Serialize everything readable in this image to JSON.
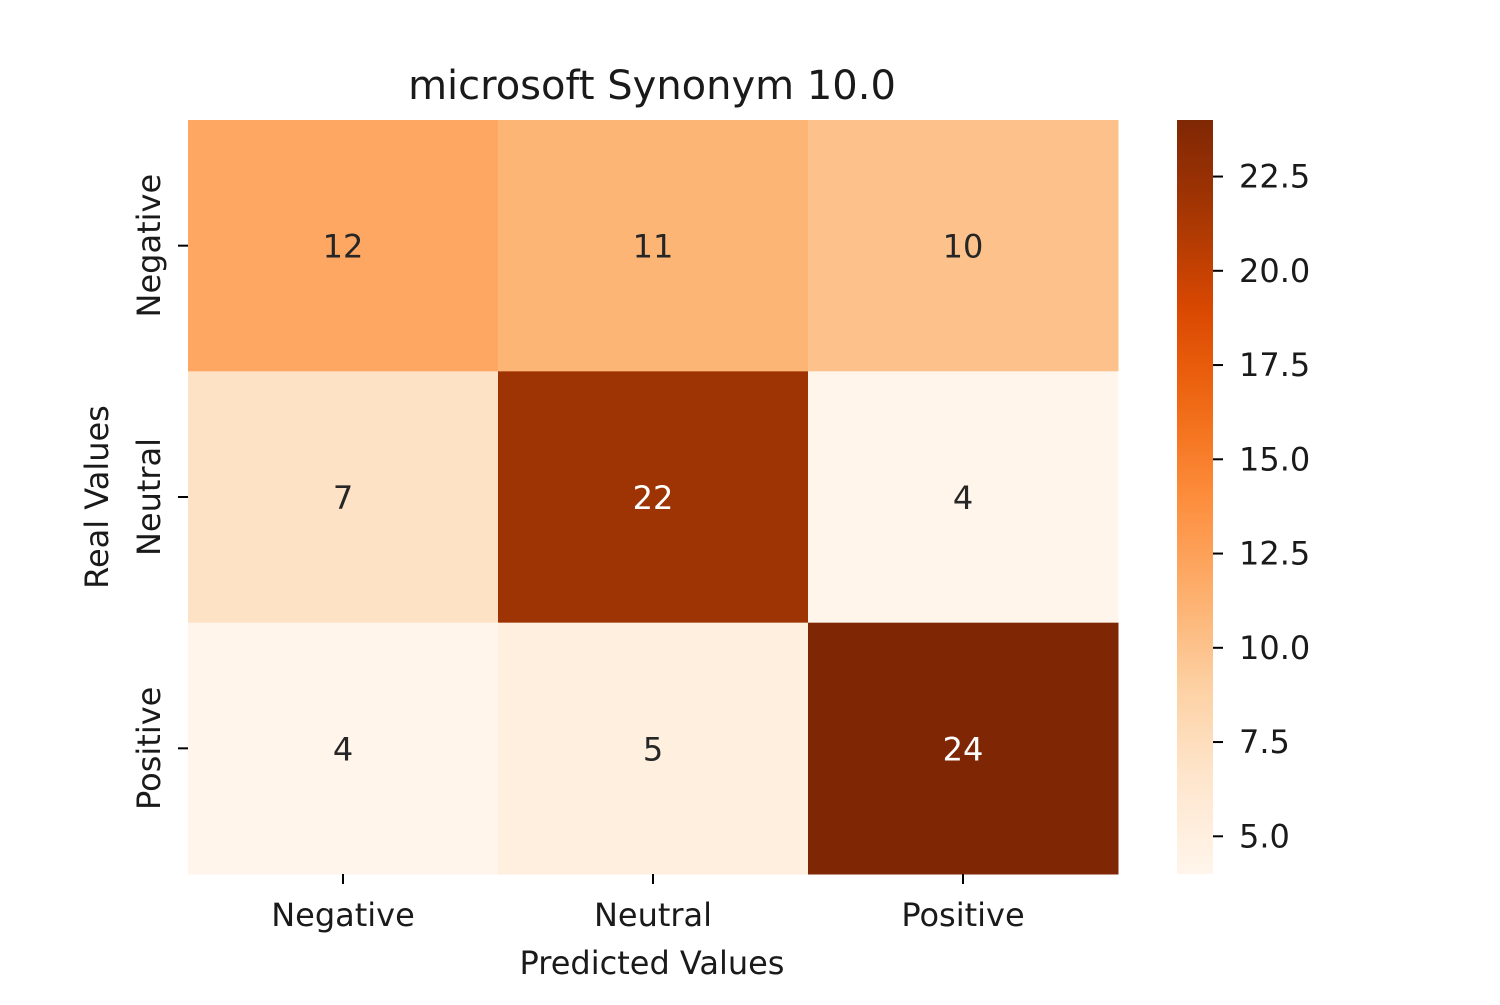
{
  "chart_data": {
    "type": "heatmap",
    "title": "microsoft Synonym 10.0",
    "xlabel": "Predicted Values",
    "ylabel": "Real Values",
    "x_categories": [
      "Negative",
      "Neutral",
      "Positive"
    ],
    "y_categories": [
      "Negative",
      "Neutral",
      "Positive"
    ],
    "values": [
      [
        12,
        11,
        10
      ],
      [
        7,
        22,
        4
      ],
      [
        4,
        5,
        24
      ]
    ],
    "colorscale": "Oranges",
    "colorbar": {
      "range": [
        4,
        24
      ],
      "ticks": [
        5.0,
        7.5,
        10.0,
        12.5,
        15.0,
        17.5,
        20.0,
        22.5
      ],
      "tick_labels": [
        "5.0",
        "7.5",
        "10.0",
        "12.5",
        "15.0",
        "17.5",
        "20.0",
        "22.5"
      ]
    },
    "annotations_shown": true
  }
}
